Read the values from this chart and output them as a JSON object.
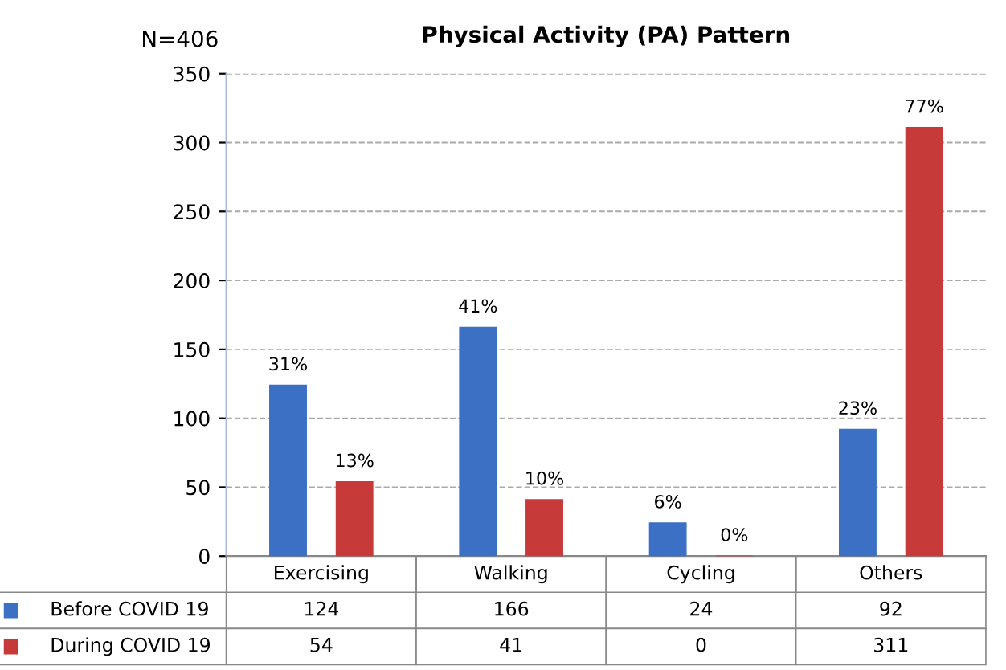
{
  "chart_data": {
    "type": "bar",
    "title": "Physical Activity (PA) Pattern",
    "annotations": [
      "N=406",
      "31%",
      "13%",
      "41%",
      "10%",
      "6%",
      "0%",
      "23%",
      "77%"
    ],
    "categories": [
      "Exercising",
      "Walking",
      "Cycling",
      "Others"
    ],
    "series": [
      {
        "name": "Before COVID 19",
        "color": "#3b70c4",
        "values": [
          124,
          166,
          24,
          92
        ]
      },
      {
        "name": "During COVID 19",
        "color": "#c63a3a",
        "values": [
          54,
          41,
          0,
          311
        ]
      }
    ],
    "ylim": [
      0,
      350
    ],
    "yticks": [
      0,
      50,
      100,
      150,
      200,
      250,
      300,
      350
    ],
    "grid": "y",
    "legend": "bottom",
    "data_labels": true
  }
}
